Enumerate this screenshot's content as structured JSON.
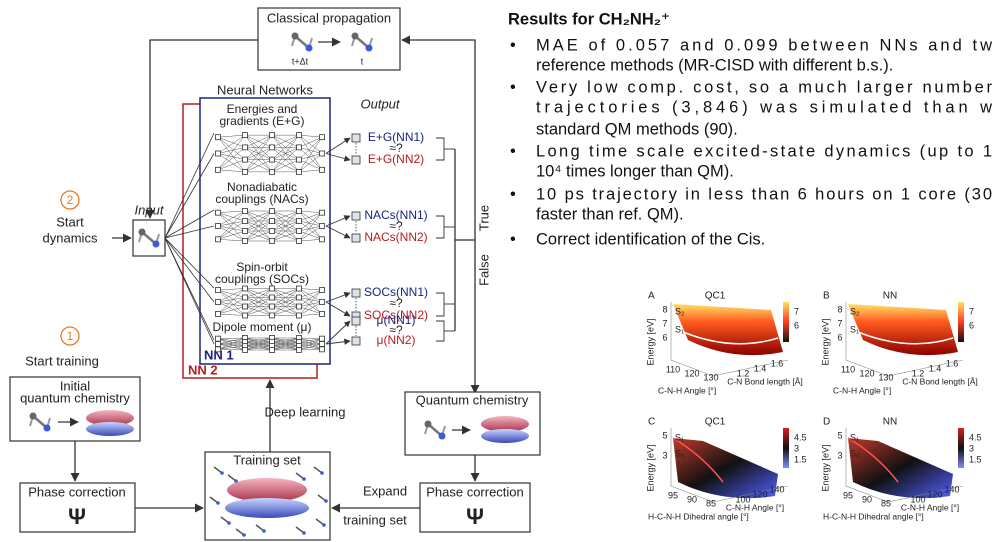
{
  "diagram": {
    "classical": {
      "title": "Classical propagation",
      "t_next": "t+Δt",
      "t": "t"
    },
    "neural_networks": {
      "title": "Neural Networks",
      "output": "Output",
      "nn1": "NN 1",
      "nn2": "NN 2",
      "blocks": [
        {
          "label": [
            "Energies and",
            "gradients (E+G)"
          ],
          "out1": "E+G(NN1)",
          "cmp": "≈?",
          "out2": "E+G(NN2)"
        },
        {
          "label": [
            "Nonadiabatic",
            "couplings (NACs)"
          ],
          "out1": "NACs(NN1)",
          "cmp": "≈?",
          "out2": "NACs(NN2)"
        },
        {
          "label": [
            "Spin-orbit",
            "couplings (SOCs)"
          ],
          "out1": "SOCs(NN1)",
          "cmp": "≈?",
          "out2": "SOCs(NN2)"
        },
        {
          "label": [
            "Dipole moment (μ)"
          ],
          "out1": "μ(NN1)",
          "cmp": "≈?",
          "out2": "μ(NN2)"
        }
      ]
    },
    "input": "Input",
    "start_dynamics": {
      "step": "2",
      "label": [
        "Start",
        "dynamics"
      ]
    },
    "branches": {
      "true": "True",
      "false": "False"
    },
    "start_training": {
      "step": "1",
      "label": "Start training"
    },
    "initial_qc": [
      "Initial",
      "quantum chemistry"
    ],
    "phase_left": {
      "label": "Phase correction",
      "symbol": "Ψ"
    },
    "deep_learning": "Deep learning",
    "training_set": "Training set",
    "expand": [
      "Expand",
      "training set"
    ],
    "quantum_chemistry": "Quantum chemistry",
    "phase_right": {
      "label": "Phase correction",
      "symbol": "Ψ"
    }
  },
  "results": {
    "title": "Results for CH₂NH₂⁺",
    "bullets": [
      [
        "MAE of 0.057 and 0.099 between NNs and tw",
        "reference methods (MR-CISD with different b.s.)."
      ],
      [
        "Very low comp. cost, so a much larger number",
        "trajectories (3,846) was simulated than w",
        "standard QM methods (90)."
      ],
      [
        "Long time scale excited-state dynamics (up to 1",
        "10⁴ times longer than QM)."
      ],
      [
        "10 ps trajectory in less than 6 hours on 1 core (30",
        "faster than ref. QM)."
      ],
      [
        "Correct identification of the Cis."
      ]
    ]
  },
  "figure": {
    "panels": [
      {
        "letter": "A",
        "title": "QC1",
        "ylabel": "Energy [eV]",
        "yticks": [
          "8",
          "7",
          "6"
        ],
        "states": [
          "S₂",
          "S₁"
        ],
        "cbar": [
          "7",
          "6"
        ],
        "xticks1": [
          "110",
          "120",
          "130"
        ],
        "xticks2": [
          "1.2",
          "1.4",
          "1.6"
        ],
        "xlabel1": "C-N-H Angle [°]",
        "xlabel2": "C-N Bond length [Å]"
      },
      {
        "letter": "B",
        "title": "NN",
        "ylabel": "Energy [eV]",
        "yticks": [
          "8",
          "7",
          "6"
        ],
        "states": [
          "S₂",
          "S₁"
        ],
        "cbar": [
          "7",
          "6"
        ],
        "xticks1": [
          "110",
          "120",
          "130"
        ],
        "xticks2": [
          "1.2",
          "1.4",
          "1.6"
        ],
        "xlabel1": "C-N-H Angle [°]",
        "xlabel2": "C-N Bond length [Å]"
      },
      {
        "letter": "C",
        "title": "QC1",
        "ylabel": "Energy [eV]",
        "yticks": [
          "5",
          "3"
        ],
        "states": [
          "S₁",
          "S₀"
        ],
        "cbar": [
          "4.5",
          "3",
          "1.5"
        ],
        "xticks1": [
          "95",
          "90",
          "85"
        ],
        "xticks2": [
          "100",
          "120",
          "140"
        ],
        "xlabel1": "H-C-N-H Dihedral angle [°]",
        "xlabel2": "C-N-H Angle [°]"
      },
      {
        "letter": "D",
        "title": "NN",
        "ylabel": "Energy [eV]",
        "yticks": [
          "5",
          "3"
        ],
        "states": [
          "S₁",
          "S₀"
        ],
        "cbar": [
          "4.5",
          "3",
          "1.5"
        ],
        "xticks1": [
          "95",
          "90",
          "85"
        ],
        "xticks2": [
          "100",
          "120",
          "140"
        ],
        "xlabel1": "H-C-N-H Dihedral angle [°]",
        "xlabel2": "C-N-H Angle [°]"
      }
    ]
  }
}
